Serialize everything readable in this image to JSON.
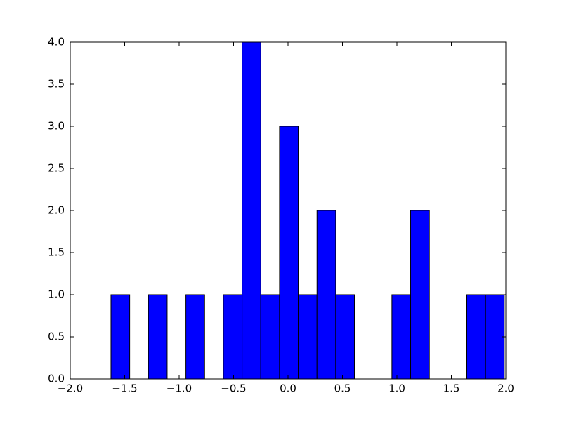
{
  "chart_data": {
    "type": "histogram",
    "color": "#0000ff",
    "edgecolor": "#000000",
    "bins": [
      -1.626,
      -1.454,
      -1.282,
      -1.11,
      -0.938,
      -0.766,
      -0.594,
      -0.422,
      -0.25,
      -0.078,
      0.094,
      0.266,
      0.438,
      0.61,
      0.782,
      0.954,
      1.126,
      1.298,
      1.47,
      1.642,
      1.814,
      1.986
    ],
    "values": [
      1,
      0,
      1,
      0,
      1,
      0,
      1,
      4,
      1,
      3,
      1,
      2,
      1,
      0,
      0,
      1,
      2,
      0,
      0,
      1,
      1
    ],
    "xlim": [
      -2.0,
      2.0
    ],
    "xticks": [
      {
        "value": -2.0,
        "label": "−2.0"
      },
      {
        "value": -1.5,
        "label": "−1.5"
      },
      {
        "value": -1.0,
        "label": "−1.0"
      },
      {
        "value": -0.5,
        "label": "−0.5"
      },
      {
        "value": 0.0,
        "label": "0.0"
      },
      0.5,
      {
        "value": 1.0,
        "label": "1.0"
      },
      1.5,
      {
        "value": 2.0,
        "label": "2.0"
      }
    ],
    "ylim": [
      0,
      4.0
    ],
    "yticks": [
      {
        "value": 0,
        "label": "0.0"
      },
      0.5,
      {
        "value": 1.0,
        "label": "1.0"
      },
      1.5,
      {
        "value": 2.0,
        "label": "2.0"
      },
      2.5,
      {
        "value": 3.0,
        "label": "3.0"
      },
      3.5,
      {
        "value": 4.0,
        "label": "4.0"
      }
    ],
    "grid": false
  }
}
